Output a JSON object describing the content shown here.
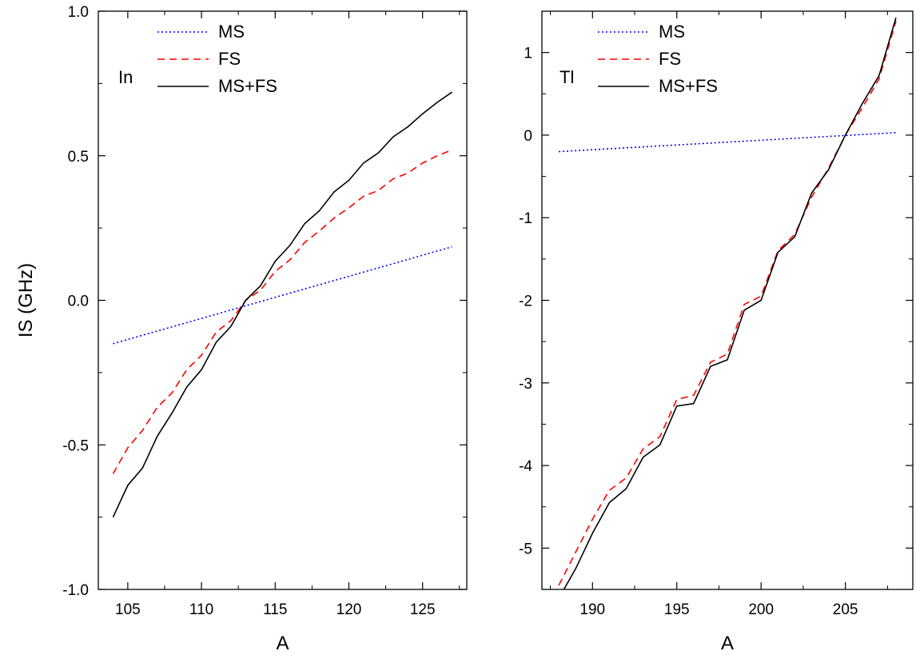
{
  "chart_data": [
    {
      "type": "line",
      "panel_label": "In",
      "xlabel": "A",
      "ylabel": "IS (GHz)",
      "xlim": [
        103,
        128
      ],
      "ylim": [
        -1.0,
        1.0
      ],
      "x_ticks": [
        105,
        110,
        115,
        120,
        125
      ],
      "y_ticks": [
        -1.0,
        -0.5,
        0.0,
        0.5,
        1.0
      ],
      "x_tick_labels": [
        "105",
        "110",
        "115",
        "120",
        "125"
      ],
      "y_tick_labels": [
        "-1.0",
        "-0.5",
        "0.0",
        "0.5",
        "1.0"
      ],
      "legend": {
        "placement": "top-left",
        "entries": [
          "MS",
          "FS",
          "MS+FS"
        ]
      },
      "series": [
        {
          "name": "MS",
          "color": "#0000ff",
          "style": "dotted",
          "x": [
            104,
            127
          ],
          "y": [
            -0.15,
            0.185
          ]
        },
        {
          "name": "FS",
          "color": "#ff0000",
          "style": "dashed",
          "x": [
            104,
            105,
            106,
            107,
            108,
            109,
            110,
            111,
            112,
            113,
            114,
            115,
            116,
            117,
            118,
            119,
            120,
            121,
            122,
            123,
            124,
            125,
            126,
            127
          ],
          "y": [
            -0.6,
            -0.51,
            -0.45,
            -0.37,
            -0.32,
            -0.24,
            -0.19,
            -0.11,
            -0.07,
            0.0,
            0.035,
            0.1,
            0.14,
            0.2,
            0.24,
            0.285,
            0.32,
            0.36,
            0.38,
            0.42,
            0.44,
            0.475,
            0.5,
            0.52
          ]
        },
        {
          "name": "MS+FS",
          "color": "#000000",
          "style": "solid",
          "x": [
            104,
            105,
            106,
            107,
            108,
            109,
            110,
            111,
            112,
            113,
            114,
            115,
            116,
            117,
            118,
            119,
            120,
            121,
            122,
            123,
            124,
            125,
            126,
            127
          ],
          "y": [
            -0.75,
            -0.64,
            -0.58,
            -0.47,
            -0.39,
            -0.3,
            -0.24,
            -0.145,
            -0.09,
            0.0,
            0.05,
            0.135,
            0.19,
            0.265,
            0.31,
            0.375,
            0.415,
            0.475,
            0.51,
            0.565,
            0.6,
            0.645,
            0.685,
            0.72
          ]
        }
      ]
    },
    {
      "type": "line",
      "panel_label": "Tl",
      "xlabel": "A",
      "ylabel": "",
      "xlim": [
        187,
        209
      ],
      "ylim": [
        -5.5,
        1.5
      ],
      "x_ticks": [
        190,
        195,
        200,
        205
      ],
      "y_ticks": [
        -5,
        -4,
        -3,
        -2,
        -1,
        0,
        1
      ],
      "x_tick_labels": [
        "190",
        "195",
        "200",
        "205"
      ],
      "y_tick_labels": [
        "-5",
        "-4",
        "-3",
        "-2",
        "-1",
        "0",
        "1"
      ],
      "legend": {
        "placement": "top-left",
        "entries": [
          "MS",
          "FS",
          "MS+FS"
        ]
      },
      "series": [
        {
          "name": "MS",
          "color": "#0000ff",
          "style": "dotted",
          "x": [
            188,
            208
          ],
          "y": [
            -0.2,
            0.03
          ]
        },
        {
          "name": "FS",
          "color": "#ff0000",
          "style": "dashed",
          "x": [
            188,
            189,
            190,
            191,
            192,
            193,
            194,
            195,
            196,
            197,
            198,
            199,
            200,
            201,
            202,
            203,
            204,
            205,
            206,
            207,
            208
          ],
          "y": [
            -5.45,
            -5.05,
            -4.65,
            -4.3,
            -4.15,
            -3.8,
            -3.65,
            -3.2,
            -3.15,
            -2.75,
            -2.65,
            -2.05,
            -1.95,
            -1.4,
            -1.2,
            -0.75,
            -0.4,
            0.0,
            0.33,
            0.68,
            1.38
          ]
        },
        {
          "name": "MS+FS",
          "color": "#000000",
          "style": "solid",
          "x": [
            188.3,
            189,
            190,
            191,
            192,
            193,
            194,
            195,
            196,
            197,
            198,
            199,
            200,
            201,
            202,
            203,
            204,
            205,
            206,
            207,
            208
          ],
          "y": [
            -5.5,
            -5.25,
            -4.82,
            -4.45,
            -4.28,
            -3.9,
            -3.75,
            -3.28,
            -3.25,
            -2.8,
            -2.72,
            -2.12,
            -2.0,
            -1.42,
            -1.23,
            -0.7,
            -0.42,
            0.0,
            0.38,
            0.72,
            1.42
          ]
        }
      ]
    }
  ]
}
